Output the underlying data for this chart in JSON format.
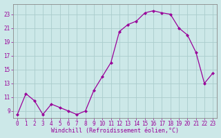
{
  "x": [
    0,
    1,
    2,
    3,
    4,
    5,
    6,
    7,
    8,
    9,
    10,
    11,
    12,
    13,
    14,
    15,
    16,
    17,
    18,
    19,
    20,
    21,
    22,
    23
  ],
  "y": [
    8.5,
    11.5,
    10.5,
    8.5,
    10.0,
    9.5,
    9.0,
    8.5,
    9.0,
    12.0,
    14.0,
    16.0,
    20.5,
    21.5,
    22.0,
    23.2,
    23.5,
    23.2,
    23.0,
    21.0,
    20.0,
    17.5,
    13.0,
    14.5
  ],
  "line_color": "#990099",
  "marker": "D",
  "markersize": 2.0,
  "linewidth": 0.9,
  "bg_color": "#cce8e8",
  "grid_color": "#aacccc",
  "tick_color": "#990099",
  "label_color": "#990099",
  "xlabel": "Windchill (Refroidissement éolien,°C)",
  "xlabel_fontsize": 6.0,
  "yticks": [
    9,
    11,
    13,
    15,
    17,
    19,
    21,
    23
  ],
  "xticks": [
    0,
    1,
    2,
    3,
    4,
    5,
    6,
    7,
    8,
    9,
    10,
    11,
    12,
    13,
    14,
    15,
    16,
    17,
    18,
    19,
    20,
    21,
    22,
    23
  ],
  "ylim": [
    8.0,
    24.5
  ],
  "xlim": [
    -0.5,
    23.5
  ],
  "tick_fontsize": 5.5,
  "spine_color": "#888888"
}
